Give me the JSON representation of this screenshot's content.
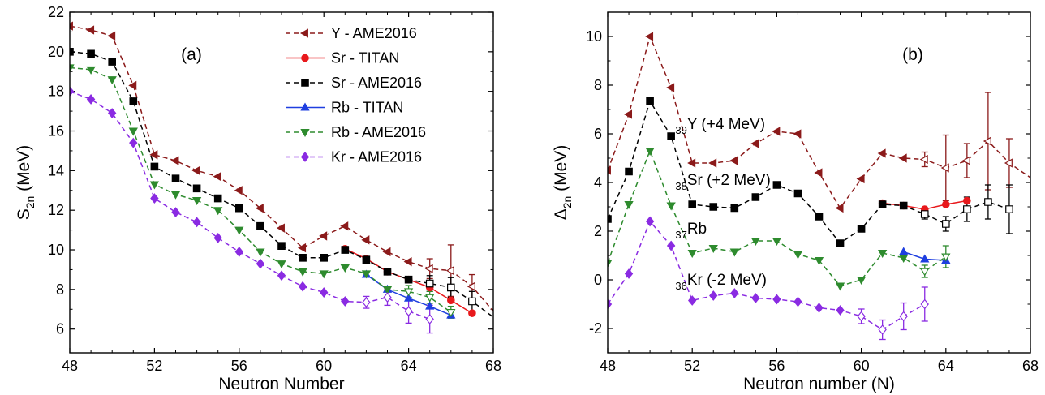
{
  "chart_data": [
    {
      "type": "line",
      "panel_label": "(a)",
      "xlabel": "Neutron Number",
      "ylabel_main": "S",
      "ylabel_sub": "2n",
      "ylabel_unit": " (MeV)",
      "xlim": [
        48,
        68
      ],
      "ylim": [
        4.8,
        22
      ],
      "xticks": [
        48,
        52,
        56,
        60,
        64,
        68
      ],
      "yticks": [
        6,
        8,
        10,
        12,
        14,
        16,
        18,
        20,
        22
      ],
      "legend": "top-right",
      "series": [
        {
          "name": "Y - AME2016",
          "color": "#8b1a1a",
          "marker": "tri-left",
          "dashed": true,
          "points": [
            [
              48,
              21.3
            ],
            [
              49,
              21.1
            ],
            [
              50,
              20.8
            ],
            [
              51,
              18.3
            ],
            [
              52,
              14.8
            ],
            [
              53,
              14.5
            ],
            [
              54,
              14.0
            ],
            [
              55,
              13.7
            ],
            [
              56,
              13.0
            ],
            [
              57,
              12.1
            ],
            [
              58,
              11.1
            ],
            [
              59,
              10.1
            ],
            [
              60,
              10.7
            ],
            [
              61,
              11.2
            ],
            [
              62,
              10.5
            ],
            [
              63,
              9.9
            ],
            [
              64,
              9.4
            ]
          ],
          "open_points": [
            [
              65,
              9.05,
              0.5
            ],
            [
              66,
              8.95,
              1.3
            ],
            [
              67,
              8.15,
              0.6
            ]
          ],
          "tail": [
            68,
            6.9
          ]
        },
        {
          "name": "Sr - TITAN",
          "color": "#e8191c",
          "marker": "circle",
          "dashed": false,
          "points": [
            [
              61,
              10.05
            ],
            [
              62,
              9.55
            ],
            [
              63,
              8.9
            ],
            [
              64,
              8.5
            ],
            [
              65,
              8.1
            ],
            [
              66,
              7.45
            ],
            [
              67,
              6.8
            ]
          ]
        },
        {
          "name": "Sr - AME2016",
          "color": "#000000",
          "marker": "square",
          "dashed": true,
          "points": [
            [
              48,
              20.0
            ],
            [
              49,
              19.9
            ],
            [
              50,
              19.5
            ],
            [
              51,
              17.5
            ],
            [
              52,
              14.2
            ],
            [
              53,
              13.6
            ],
            [
              54,
              13.1
            ],
            [
              55,
              12.6
            ],
            [
              56,
              12.1
            ],
            [
              57,
              11.2
            ],
            [
              58,
              10.2
            ],
            [
              59,
              9.6
            ],
            [
              60,
              9.6
            ],
            [
              61,
              10.0
            ],
            [
              62,
              9.5
            ],
            [
              63,
              8.9
            ],
            [
              64,
              8.5
            ]
          ],
          "open_points": [
            [
              65,
              8.3,
              0.4
            ],
            [
              66,
              8.1,
              0.5
            ],
            [
              67,
              7.4,
              0.5
            ]
          ],
          "tail": [
            68,
            6.6
          ]
        },
        {
          "name": "Rb - TITAN",
          "color": "#1f3fe0",
          "marker": "triangle-up",
          "dashed": false,
          "points": [
            [
              62,
              8.75
            ],
            [
              63,
              8.0
            ],
            [
              64,
              7.55
            ],
            [
              65,
              7.15
            ],
            [
              66,
              6.7
            ]
          ]
        },
        {
          "name": "Rb - AME2016",
          "color": "#2e8b2e",
          "marker": "triangle-down",
          "dashed": true,
          "points": [
            [
              48,
              19.2
            ],
            [
              49,
              19.1
            ],
            [
              50,
              18.6
            ],
            [
              51,
              16.0
            ],
            [
              52,
              13.3
            ],
            [
              53,
              12.8
            ],
            [
              54,
              12.5
            ],
            [
              55,
              12.0
            ],
            [
              56,
              11.0
            ],
            [
              57,
              9.9
            ],
            [
              58,
              9.3
            ],
            [
              59,
              8.9
            ],
            [
              60,
              8.8
            ],
            [
              61,
              9.1
            ],
            [
              62,
              8.8
            ],
            [
              63,
              8.0
            ]
          ],
          "open_points": [
            [
              64,
              7.9,
              0.3
            ],
            [
              65,
              7.6,
              0.3
            ],
            [
              66,
              6.85,
              0.3
            ]
          ]
        },
        {
          "name": "Kr - AME2016",
          "color": "#8a2be2",
          "marker": "diamond",
          "dashed": true,
          "points": [
            [
              48,
              18.0
            ],
            [
              49,
              17.6
            ],
            [
              50,
              16.9
            ],
            [
              51,
              15.4
            ],
            [
              52,
              12.6
            ],
            [
              53,
              11.9
            ],
            [
              54,
              11.4
            ],
            [
              55,
              10.6
            ],
            [
              56,
              9.9
            ],
            [
              57,
              9.3
            ],
            [
              58,
              8.7
            ],
            [
              59,
              8.15
            ],
            [
              60,
              7.85
            ],
            [
              61,
              7.4
            ]
          ],
          "open_points": [
            [
              62,
              7.35,
              0.3
            ],
            [
              63,
              7.6,
              0.4
            ],
            [
              64,
              6.9,
              0.6
            ],
            [
              65,
              6.5,
              0.7
            ]
          ]
        }
      ]
    },
    {
      "type": "line",
      "panel_label": "(b)",
      "xlabel": "Neutron number (N)",
      "ylabel_main": "Δ",
      "ylabel_sub": "2n",
      "ylabel_unit": " (MeV)",
      "xlim": [
        48,
        68
      ],
      "ylim": [
        -3,
        11
      ],
      "xticks": [
        48,
        52,
        56,
        60,
        64,
        68
      ],
      "yticks": [
        -2,
        0,
        2,
        4,
        6,
        8,
        10
      ],
      "annotations": [
        {
          "sub": "39",
          "text": "Y (+4 MeV)",
          "x": 51.2,
          "y": 6.2
        },
        {
          "sub": "38",
          "text": "Sr (+2 MeV)",
          "x": 51.2,
          "y": 3.9
        },
        {
          "sub": "37",
          "text": "Rb",
          "x": 51.2,
          "y": 1.9
        },
        {
          "sub": "36",
          "text": "Kr (-2 MeV)",
          "x": 51.2,
          "y": -0.2
        }
      ],
      "series": [
        {
          "name": "Y",
          "color": "#8b1a1a",
          "marker": "tri-left",
          "dashed": true,
          "points": [
            [
              48,
              4.5
            ],
            [
              49,
              6.8
            ],
            [
              50,
              10.0
            ],
            [
              51,
              7.9
            ],
            [
              52,
              4.8
            ],
            [
              53,
              4.8
            ],
            [
              54,
              4.9
            ],
            [
              55,
              5.6
            ],
            [
              56,
              6.1
            ],
            [
              57,
              6.0
            ],
            [
              58,
              4.4
            ],
            [
              59,
              2.95
            ],
            [
              60,
              4.15
            ],
            [
              61,
              5.2
            ],
            [
              62,
              5.0
            ]
          ],
          "open_points": [
            [
              63,
              4.95,
              0.3
            ],
            [
              64,
              4.6,
              1.35
            ],
            [
              65,
              4.9,
              0.7
            ],
            [
              66,
              5.7,
              2.0
            ],
            [
              67,
              4.8,
              1.0
            ]
          ],
          "tail": [
            68,
            4.2
          ]
        },
        {
          "name": "Sr TITAN",
          "color": "#e8191c",
          "marker": "circle",
          "dashed": false,
          "points": [
            [
              61,
              3.15
            ],
            [
              62,
              3.05
            ],
            [
              63,
              2.9
            ],
            [
              64,
              3.1
            ],
            [
              65,
              3.25
            ]
          ]
        },
        {
          "name": "Sr",
          "color": "#000000",
          "marker": "square",
          "dashed": true,
          "points": [
            [
              48,
              2.5
            ],
            [
              49,
              4.45
            ],
            [
              50,
              7.35
            ],
            [
              51,
              5.9
            ],
            [
              52,
              3.1
            ],
            [
              53,
              3.0
            ],
            [
              54,
              2.95
            ],
            [
              55,
              3.4
            ],
            [
              56,
              3.9
            ],
            [
              57,
              3.55
            ],
            [
              58,
              2.6
            ],
            [
              59,
              1.5
            ],
            [
              60,
              2.1
            ],
            [
              61,
              3.1
            ],
            [
              62,
              3.05
            ]
          ],
          "open_points": [
            [
              63,
              2.7,
              0.2
            ],
            [
              64,
              2.3,
              0.3
            ],
            [
              65,
              2.9,
              0.5
            ],
            [
              66,
              3.2,
              0.7
            ],
            [
              67,
              2.9,
              1.0
            ]
          ]
        },
        {
          "name": "Rb TITAN",
          "color": "#1f3fe0",
          "marker": "triangle-up",
          "dashed": false,
          "points": [
            [
              62,
              1.15
            ],
            [
              63,
              0.85
            ],
            [
              64,
              0.8
            ]
          ]
        },
        {
          "name": "Rb",
          "color": "#2e8b2e",
          "marker": "triangle-down",
          "dashed": true,
          "points": [
            [
              48,
              0.7
            ],
            [
              49,
              3.1
            ],
            [
              50,
              5.3
            ],
            [
              51,
              3.05
            ],
            [
              52,
              1.1
            ],
            [
              53,
              1.3
            ],
            [
              54,
              1.15
            ],
            [
              55,
              1.6
            ],
            [
              56,
              1.6
            ],
            [
              57,
              1.05
            ],
            [
              58,
              0.8
            ],
            [
              59,
              -0.25
            ],
            [
              60,
              0.0
            ],
            [
              61,
              1.1
            ],
            [
              62,
              0.9
            ]
          ],
          "open_points": [
            [
              63,
              0.35,
              0.25
            ],
            [
              64,
              0.95,
              0.45
            ]
          ]
        },
        {
          "name": "Kr",
          "color": "#8a2be2",
          "marker": "diamond",
          "dashed": true,
          "points": [
            [
              48,
              -1.0
            ],
            [
              49,
              0.25
            ],
            [
              50,
              2.4
            ],
            [
              51,
              1.4
            ],
            [
              52,
              -0.85
            ],
            [
              53,
              -0.65
            ],
            [
              54,
              -0.55
            ],
            [
              55,
              -0.75
            ],
            [
              56,
              -0.8
            ],
            [
              57,
              -0.9
            ],
            [
              58,
              -1.15
            ],
            [
              59,
              -1.25
            ]
          ],
          "open_points": [
            [
              60,
              -1.5,
              0.3
            ],
            [
              61,
              -2.05,
              0.4
            ],
            [
              62,
              -1.5,
              0.55
            ],
            [
              63,
              -1.0,
              0.7
            ]
          ]
        }
      ]
    }
  ]
}
